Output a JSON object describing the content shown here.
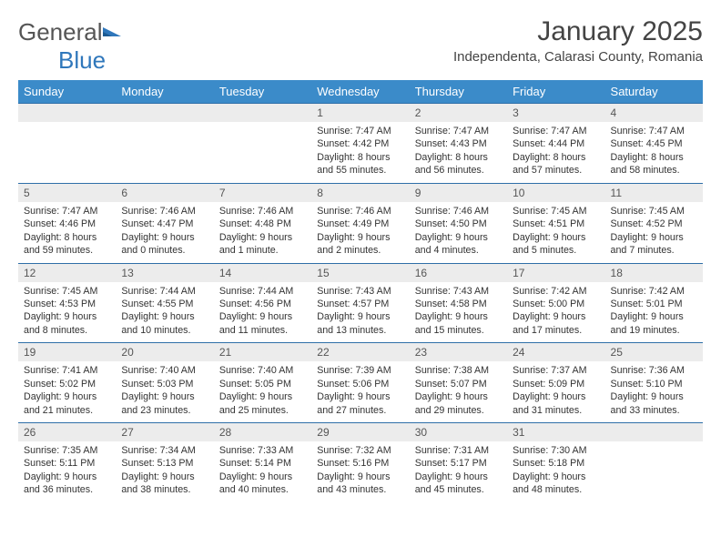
{
  "logo": {
    "general": "General",
    "blue": "Blue"
  },
  "title": "January 2025",
  "location": "Independenta, Calarasi County, Romania",
  "colors": {
    "header_bg": "#3b8bc9",
    "header_fg": "#ffffff",
    "rule": "#2f6fa8",
    "daynum_bg": "#ececec",
    "text": "#333333",
    "title_text": "#444444"
  },
  "day_headers": [
    "Sunday",
    "Monday",
    "Tuesday",
    "Wednesday",
    "Thursday",
    "Friday",
    "Saturday"
  ],
  "weeks": [
    [
      null,
      null,
      null,
      {
        "n": "1",
        "sr": "7:47 AM",
        "ss": "4:42 PM",
        "dl": "8 hours and 55 minutes."
      },
      {
        "n": "2",
        "sr": "7:47 AM",
        "ss": "4:43 PM",
        "dl": "8 hours and 56 minutes."
      },
      {
        "n": "3",
        "sr": "7:47 AM",
        "ss": "4:44 PM",
        "dl": "8 hours and 57 minutes."
      },
      {
        "n": "4",
        "sr": "7:47 AM",
        "ss": "4:45 PM",
        "dl": "8 hours and 58 minutes."
      }
    ],
    [
      {
        "n": "5",
        "sr": "7:47 AM",
        "ss": "4:46 PM",
        "dl": "8 hours and 59 minutes."
      },
      {
        "n": "6",
        "sr": "7:46 AM",
        "ss": "4:47 PM",
        "dl": "9 hours and 0 minutes."
      },
      {
        "n": "7",
        "sr": "7:46 AM",
        "ss": "4:48 PM",
        "dl": "9 hours and 1 minute."
      },
      {
        "n": "8",
        "sr": "7:46 AM",
        "ss": "4:49 PM",
        "dl": "9 hours and 2 minutes."
      },
      {
        "n": "9",
        "sr": "7:46 AM",
        "ss": "4:50 PM",
        "dl": "9 hours and 4 minutes."
      },
      {
        "n": "10",
        "sr": "7:45 AM",
        "ss": "4:51 PM",
        "dl": "9 hours and 5 minutes."
      },
      {
        "n": "11",
        "sr": "7:45 AM",
        "ss": "4:52 PM",
        "dl": "9 hours and 7 minutes."
      }
    ],
    [
      {
        "n": "12",
        "sr": "7:45 AM",
        "ss": "4:53 PM",
        "dl": "9 hours and 8 minutes."
      },
      {
        "n": "13",
        "sr": "7:44 AM",
        "ss": "4:55 PM",
        "dl": "9 hours and 10 minutes."
      },
      {
        "n": "14",
        "sr": "7:44 AM",
        "ss": "4:56 PM",
        "dl": "9 hours and 11 minutes."
      },
      {
        "n": "15",
        "sr": "7:43 AM",
        "ss": "4:57 PM",
        "dl": "9 hours and 13 minutes."
      },
      {
        "n": "16",
        "sr": "7:43 AM",
        "ss": "4:58 PM",
        "dl": "9 hours and 15 minutes."
      },
      {
        "n": "17",
        "sr": "7:42 AM",
        "ss": "5:00 PM",
        "dl": "9 hours and 17 minutes."
      },
      {
        "n": "18",
        "sr": "7:42 AM",
        "ss": "5:01 PM",
        "dl": "9 hours and 19 minutes."
      }
    ],
    [
      {
        "n": "19",
        "sr": "7:41 AM",
        "ss": "5:02 PM",
        "dl": "9 hours and 21 minutes."
      },
      {
        "n": "20",
        "sr": "7:40 AM",
        "ss": "5:03 PM",
        "dl": "9 hours and 23 minutes."
      },
      {
        "n": "21",
        "sr": "7:40 AM",
        "ss": "5:05 PM",
        "dl": "9 hours and 25 minutes."
      },
      {
        "n": "22",
        "sr": "7:39 AM",
        "ss": "5:06 PM",
        "dl": "9 hours and 27 minutes."
      },
      {
        "n": "23",
        "sr": "7:38 AM",
        "ss": "5:07 PM",
        "dl": "9 hours and 29 minutes."
      },
      {
        "n": "24",
        "sr": "7:37 AM",
        "ss": "5:09 PM",
        "dl": "9 hours and 31 minutes."
      },
      {
        "n": "25",
        "sr": "7:36 AM",
        "ss": "5:10 PM",
        "dl": "9 hours and 33 minutes."
      }
    ],
    [
      {
        "n": "26",
        "sr": "7:35 AM",
        "ss": "5:11 PM",
        "dl": "9 hours and 36 minutes."
      },
      {
        "n": "27",
        "sr": "7:34 AM",
        "ss": "5:13 PM",
        "dl": "9 hours and 38 minutes."
      },
      {
        "n": "28",
        "sr": "7:33 AM",
        "ss": "5:14 PM",
        "dl": "9 hours and 40 minutes."
      },
      {
        "n": "29",
        "sr": "7:32 AM",
        "ss": "5:16 PM",
        "dl": "9 hours and 43 minutes."
      },
      {
        "n": "30",
        "sr": "7:31 AM",
        "ss": "5:17 PM",
        "dl": "9 hours and 45 minutes."
      },
      {
        "n": "31",
        "sr": "7:30 AM",
        "ss": "5:18 PM",
        "dl": "9 hours and 48 minutes."
      },
      null
    ]
  ],
  "labels": {
    "sunrise": "Sunrise:",
    "sunset": "Sunset:",
    "daylight": "Daylight:"
  }
}
